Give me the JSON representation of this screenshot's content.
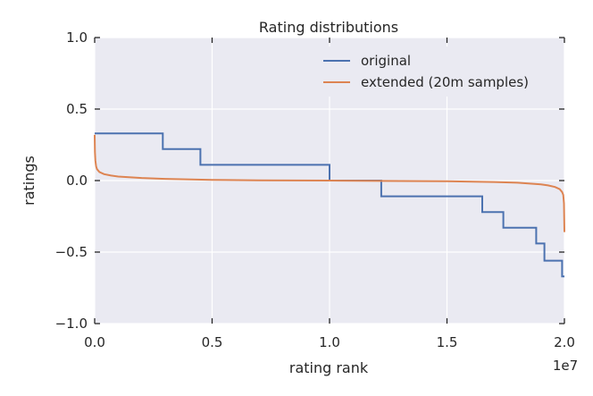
{
  "chart_data": {
    "type": "line",
    "title": "Rating distributions",
    "xlabel": "rating rank",
    "ylabel": "ratings",
    "x_offset_label": "1e7",
    "xlim": [
      0,
      2.0
    ],
    "ylim": [
      -1.0,
      1.0
    ],
    "xticks": [
      0.0,
      0.5,
      1.0,
      1.5,
      2.0
    ],
    "xtick_labels": [
      "0.0",
      "0.5",
      "1.0",
      "1.5",
      "2.0"
    ],
    "yticks": [
      1.0,
      0.5,
      0.0,
      -0.5,
      -1.0
    ],
    "ytick_labels": [
      "1.0",
      "0.5",
      "0.0",
      "−0.5",
      "−1.0"
    ],
    "grid": true,
    "legend_position": "top-right",
    "colors": {
      "plot_background": "#eaeaf2",
      "grid": "#ffffff",
      "original": "#4c72b0",
      "extended": "#dd8452"
    },
    "series": [
      {
        "name": "original",
        "step": true,
        "x": [
          0.0,
          0.29,
          0.29,
          0.45,
          0.45,
          1.0,
          1.0,
          1.22,
          1.22,
          1.65,
          1.65,
          1.74,
          1.74,
          1.88,
          1.88,
          1.915,
          1.915,
          1.99,
          1.99,
          2.0
        ],
        "y": [
          0.33,
          0.33,
          0.22,
          0.22,
          0.11,
          0.11,
          0.0,
          0.0,
          -0.11,
          -0.11,
          -0.22,
          -0.22,
          -0.33,
          -0.33,
          -0.44,
          -0.44,
          -0.56,
          -0.56,
          -0.67,
          -0.67
        ]
      },
      {
        "name": "extended (20m samples)",
        "step": false,
        "x": [
          0.0,
          0.001,
          0.003,
          0.006,
          0.01,
          0.02,
          0.04,
          0.07,
          0.1,
          0.2,
          0.3,
          0.5,
          0.7,
          1.0,
          1.3,
          1.5,
          1.7,
          1.8,
          1.9,
          1.93,
          1.96,
          1.98,
          1.99,
          1.995,
          1.998,
          2.0
        ],
        "y": [
          0.32,
          0.2,
          0.14,
          0.1,
          0.08,
          0.06,
          0.045,
          0.035,
          0.028,
          0.018,
          0.012,
          0.005,
          0.002,
          0.0,
          -0.003,
          -0.005,
          -0.01,
          -0.015,
          -0.027,
          -0.034,
          -0.045,
          -0.06,
          -0.08,
          -0.1,
          -0.16,
          -0.36
        ]
      }
    ]
  }
}
